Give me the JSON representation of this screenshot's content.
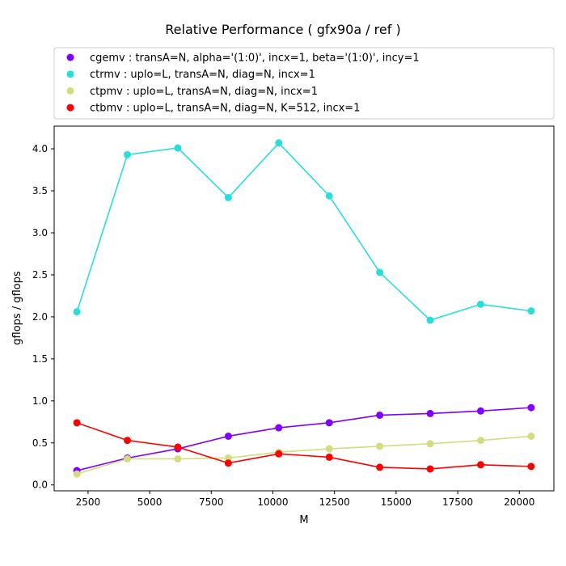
{
  "chart_data": {
    "type": "line",
    "title": "Relative Performance ( gfx90a /  ref )",
    "xlabel": "M",
    "ylabel": "gflops / gflops",
    "x": [
      2048,
      4096,
      6144,
      8192,
      10240,
      12288,
      14336,
      16384,
      18432,
      20480
    ],
    "xlim": [
      1126,
      21402
    ],
    "ylim": [
      -0.07,
      4.27
    ],
    "xticks": [
      2500,
      5000,
      7500,
      10000,
      12500,
      15000,
      17500,
      20000
    ],
    "yticks": [
      0.0,
      0.5,
      1.0,
      1.5,
      2.0,
      2.5,
      3.0,
      3.5,
      4.0
    ],
    "grid": false,
    "legend_position": "top",
    "series": [
      {
        "name": "cgemv :  transA=N, alpha='(1:0)', incx=1, beta='(1:0)', incy=1",
        "color": "#8000ff",
        "values": [
          0.17,
          0.32,
          0.43,
          0.58,
          0.68,
          0.74,
          0.83,
          0.85,
          0.88,
          0.92
        ]
      },
      {
        "name": "ctrmv :  uplo=L, transA=N, diag=N, incx=1",
        "color": "#2adddd",
        "values": [
          2.06,
          3.93,
          4.01,
          3.42,
          4.07,
          3.44,
          2.53,
          1.96,
          2.15,
          2.07
        ]
      },
      {
        "name": "ctpmv :  uplo=L, transA=N, diag=N, incx=1",
        "color": "#d4dc7f",
        "values": [
          0.13,
          0.31,
          0.31,
          0.32,
          0.39,
          0.43,
          0.46,
          0.49,
          0.53,
          0.58
        ]
      },
      {
        "name": "ctbmv :  uplo=L, transA=N, diag=N, K=512, incx=1",
        "color": "#ff0000",
        "values": [
          0.74,
          0.53,
          0.45,
          0.26,
          0.37,
          0.33,
          0.21,
          0.19,
          0.24,
          0.22
        ]
      }
    ]
  }
}
